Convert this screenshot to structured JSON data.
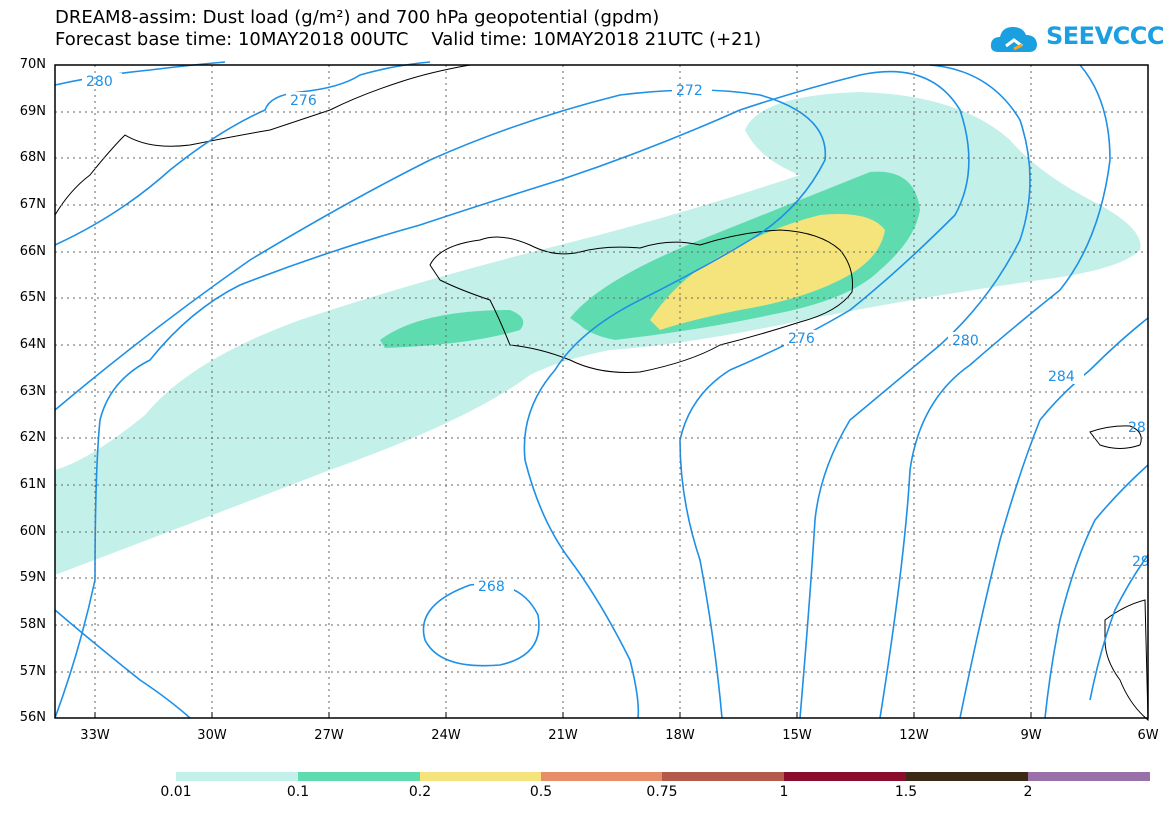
{
  "title": {
    "line1": "DREAM8-assim: Dust load (g/m²) and 700 hPa geopotential (gpdm)",
    "line2": "Forecast base time: 10MAY2018 00UTC    Valid time: 10MAY2018 21UTC (+21)"
  },
  "logo": {
    "text": "SEEVCCC",
    "icon": "cloud-logo-icon",
    "color": "#1a9fe0"
  },
  "map": {
    "region": "North Atlantic / Iceland",
    "lat_labels": [
      "70N",
      "69N",
      "68N",
      "67N",
      "66N",
      "65N",
      "64N",
      "63N",
      "62N",
      "61N",
      "60N",
      "59N",
      "58N",
      "57N",
      "56N"
    ],
    "lon_labels": [
      "33W",
      "30W",
      "27W",
      "24W",
      "21W",
      "18W",
      "15W",
      "12W",
      "9W",
      "6W"
    ],
    "contour_color": "#1e90e6",
    "contour_labels": [
      "280",
      "276",
      "272",
      "268",
      "276",
      "280",
      "284",
      "28",
      "29"
    ]
  },
  "colorbar": {
    "labels": [
      "0.01",
      "0.1",
      "0.2",
      "0.5",
      "0.75",
      "1",
      "1.5",
      "2"
    ],
    "colors": [
      "#c4f0ea",
      "#5edcb0",
      "#f5e47c",
      "#e58e68",
      "#b35a4a",
      "#8a0e2c",
      "#3d2a14",
      "#9a70a8"
    ]
  },
  "chart_data": {
    "type": "map-contour",
    "title": "DREAM8-assim: Dust load (g/m²) and 700 hPa geopotential (gpdm)",
    "x_range": [
      "33W",
      "6W"
    ],
    "y_range": [
      "56N",
      "70N"
    ],
    "contour_levels": [
      268,
      272,
      276,
      280,
      284
    ]
  }
}
